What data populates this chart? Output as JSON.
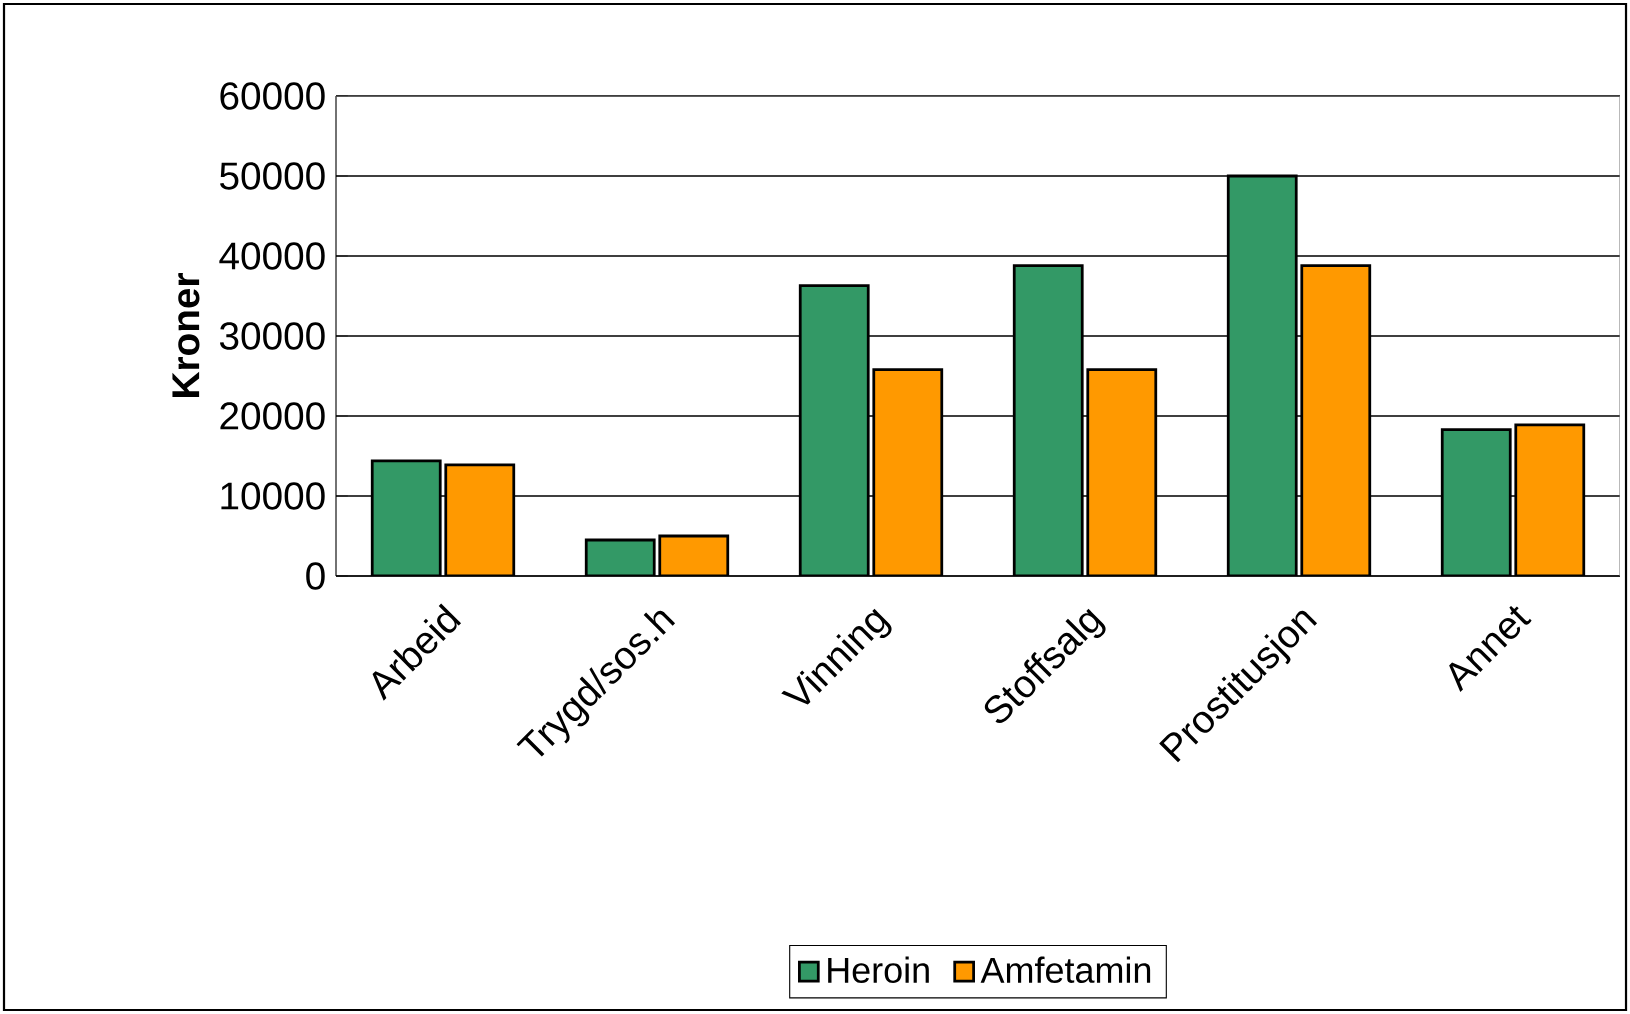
{
  "chart_data": {
    "type": "bar",
    "ylabel": "Kroner",
    "categories": [
      "Arbeid",
      "Trygd/sos.h",
      "Vinning",
      "Stoffsalg",
      "Prostitusjon",
      "Annet"
    ],
    "series": [
      {
        "name": "Heroin",
        "color": "#339966",
        "values": [
          14400,
          4500,
          36300,
          38800,
          50000,
          18300
        ]
      },
      {
        "name": "Amfetamin",
        "color": "#ff9900",
        "values": [
          13900,
          5000,
          25800,
          25800,
          38800,
          18900
        ]
      }
    ],
    "ylim": [
      0,
      60000
    ],
    "yticks": [
      0,
      10000,
      20000,
      30000,
      40000,
      50000,
      60000
    ],
    "grid": "y",
    "legend": "bottom"
  }
}
